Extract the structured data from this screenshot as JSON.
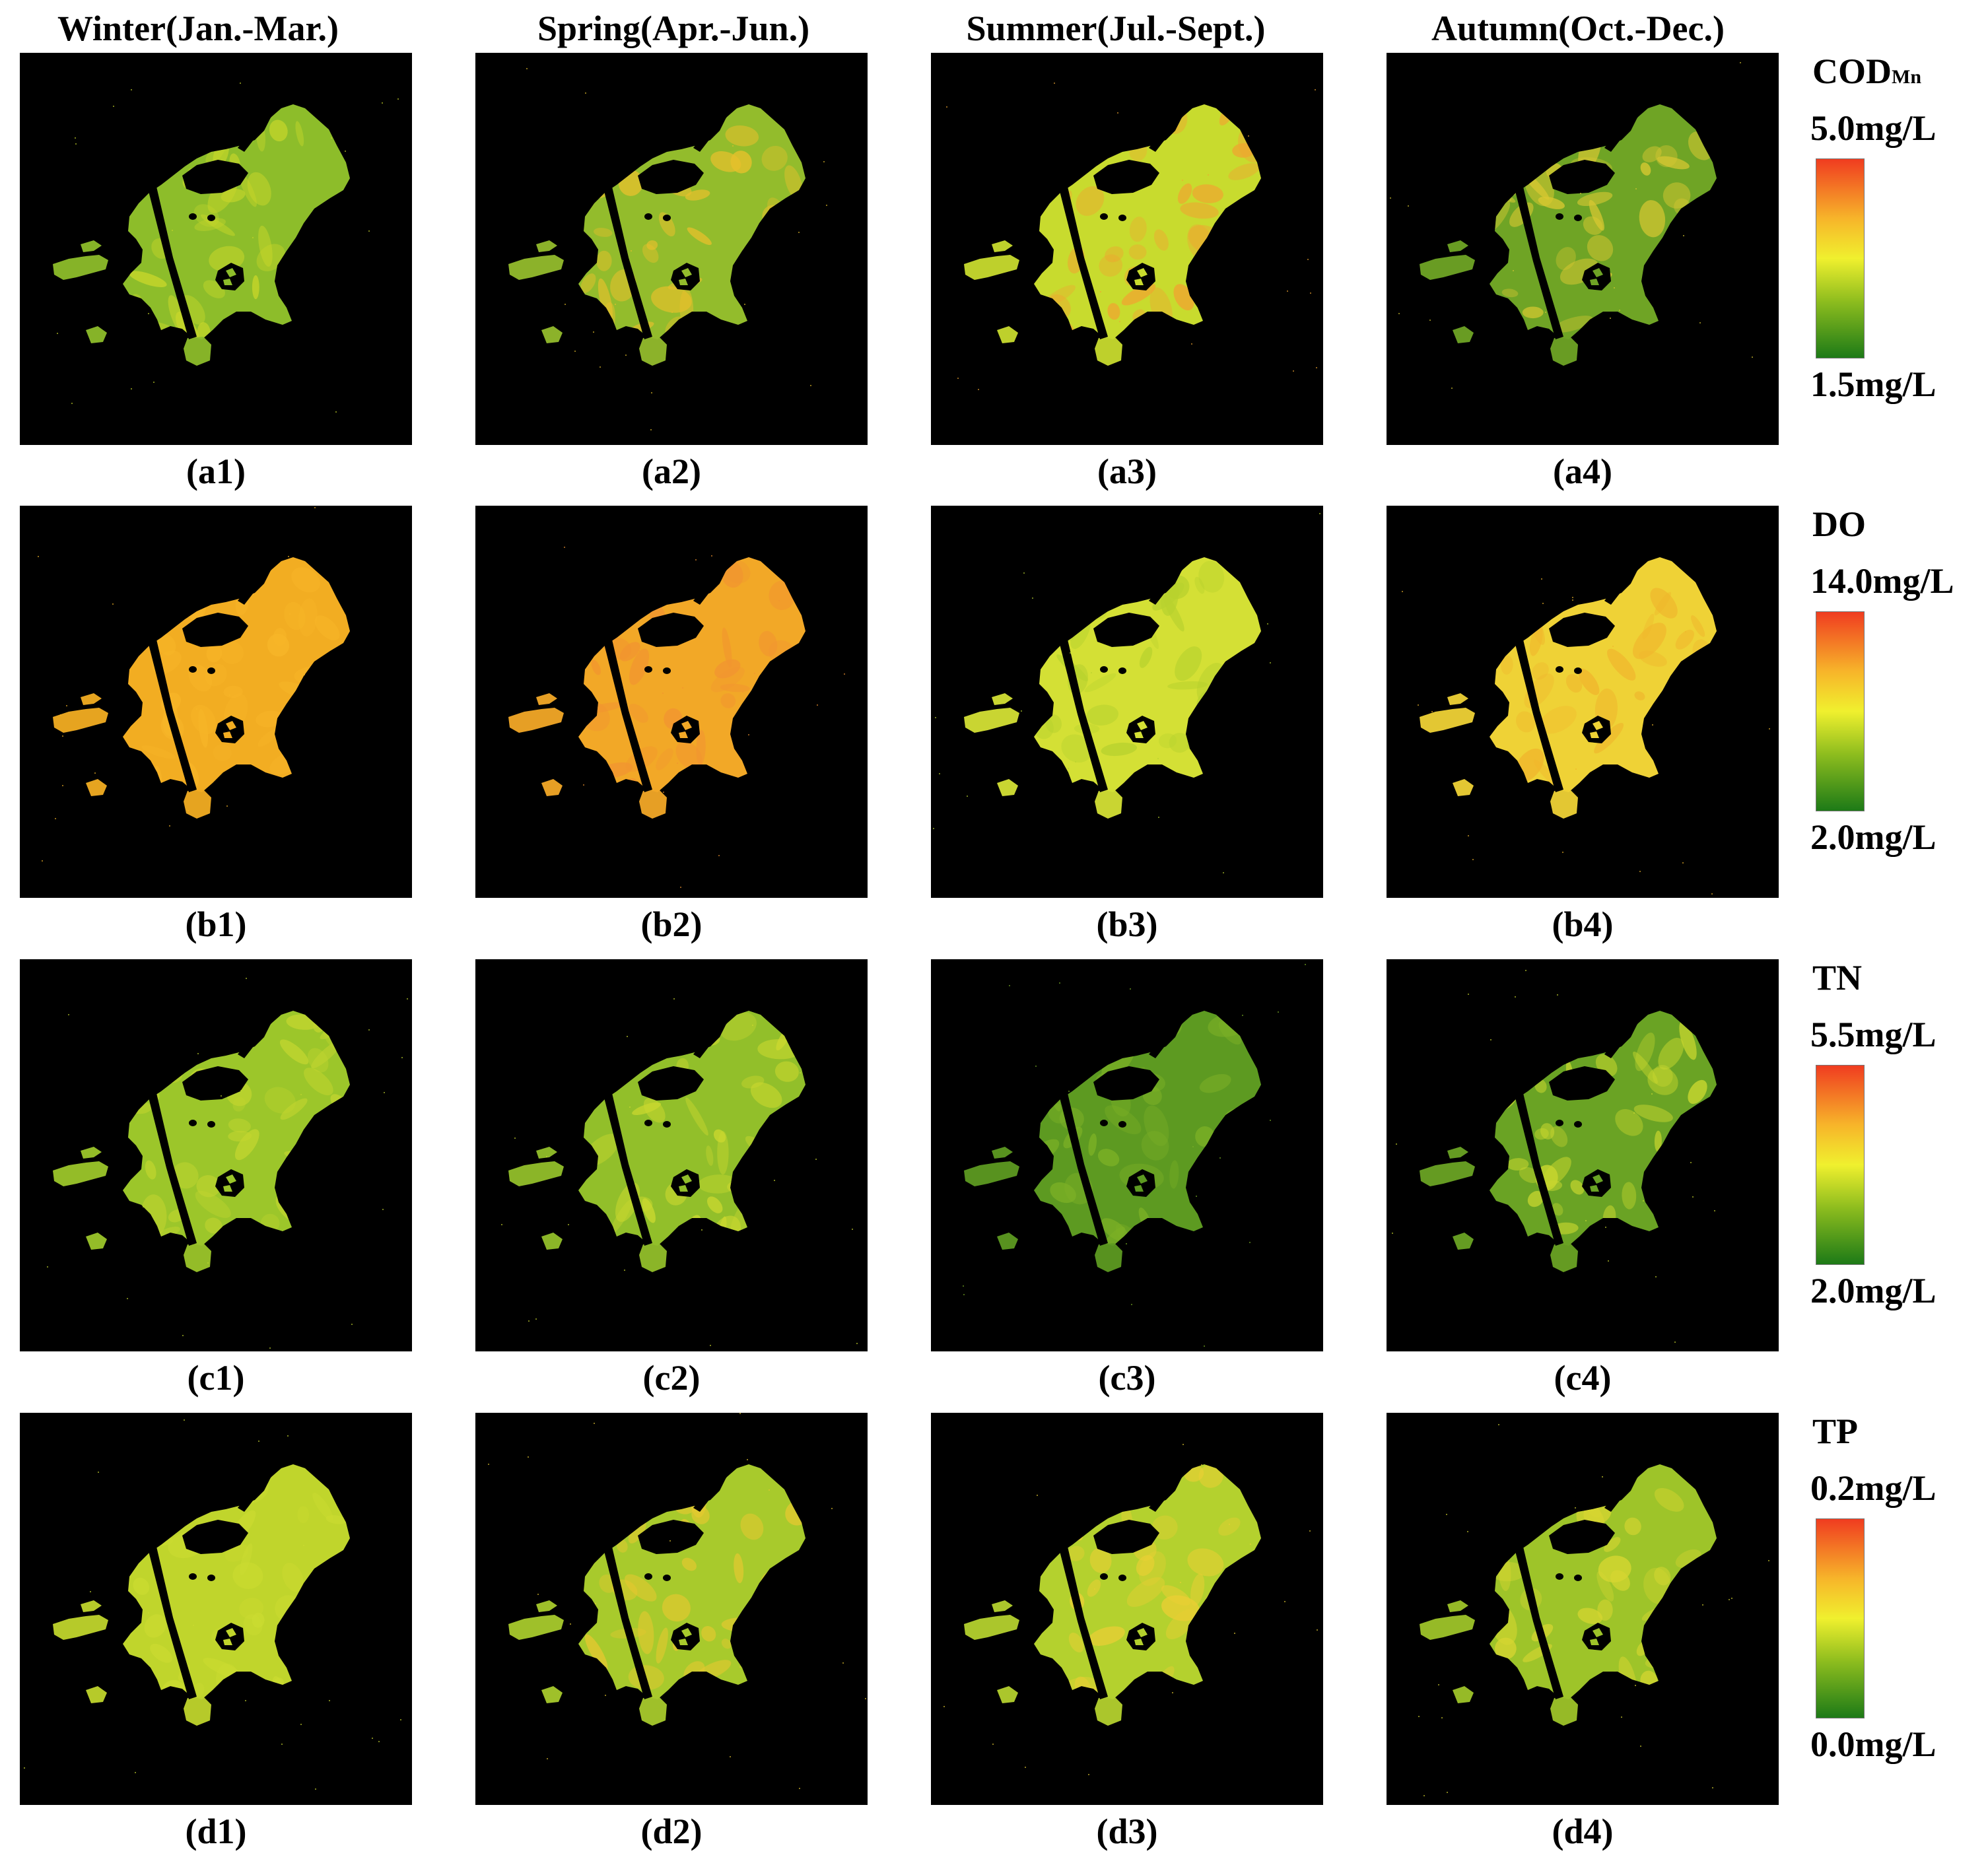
{
  "seasons": [
    "Winter(Jan.-Mar.)",
    "Spring(Apr.-Jun.)",
    "Summer(Jul.-Sept.)",
    "Autumn(Oct.-Dec.)"
  ],
  "rows": [
    {
      "parameter": "COD",
      "parameter_sub": "Mn",
      "max_label": "5.0mg/L",
      "min_label": "1.5mg/L",
      "panels": [
        {
          "label": "(a1)",
          "base_color": "#8dbd2a",
          "patch_color": "#c7d62a"
        },
        {
          "label": "(a2)",
          "base_color": "#93bc2c",
          "patch_color": "#e6c02c"
        },
        {
          "label": "(a3)",
          "base_color": "#c8db2e",
          "patch_color": "#f0a530"
        },
        {
          "label": "(a4)",
          "base_color": "#6fa425",
          "patch_color": "#d8c832"
        }
      ]
    },
    {
      "parameter": "DO",
      "parameter_sub": "",
      "max_label": "14.0mg/L",
      "min_label": "2.0mg/L",
      "panels": [
        {
          "label": "(b1)",
          "base_color": "#f2ad22",
          "patch_color": "#f7b528"
        },
        {
          "label": "(b2)",
          "base_color": "#f2a827",
          "patch_color": "#f29430"
        },
        {
          "label": "(b3)",
          "base_color": "#d4e035",
          "patch_color": "#b8d22e"
        },
        {
          "label": "(b4)",
          "base_color": "#efd236",
          "patch_color": "#f0b62c"
        }
      ]
    },
    {
      "parameter": "TN",
      "parameter_sub": "",
      "max_label": "5.5mg/L",
      "min_label": "2.0mg/L",
      "panels": [
        {
          "label": "(c1)",
          "base_color": "#9cc62a",
          "patch_color": "#c2d52f"
        },
        {
          "label": "(c2)",
          "base_color": "#92bf2a",
          "patch_color": "#cbd82f"
        },
        {
          "label": "(c3)",
          "base_color": "#5d9a21",
          "patch_color": "#7cb026"
        },
        {
          "label": "(c4)",
          "base_color": "#6aa324",
          "patch_color": "#c9d72f"
        }
      ]
    },
    {
      "parameter": "TP",
      "parameter_sub": "",
      "max_label": "0.2mg/L",
      "min_label": "0.0mg/L",
      "panels": [
        {
          "label": "(d1)",
          "base_color": "#c0d52c",
          "patch_color": "#cbdb31"
        },
        {
          "label": "(d2)",
          "base_color": "#a8ca2c",
          "patch_color": "#e8c830"
        },
        {
          "label": "(d3)",
          "base_color": "#b4d12e",
          "patch_color": "#e9cf34"
        },
        {
          "label": "(d4)",
          "base_color": "#9ec429",
          "patch_color": "#d7d631"
        }
      ]
    }
  ],
  "colorbar": {
    "top_color": "#f03c20",
    "mid_upper_color": "#f7b52a",
    "mid_color": "#f0f02e",
    "low_color": "#8cbc1e",
    "bottom_color": "#1d7a17"
  }
}
